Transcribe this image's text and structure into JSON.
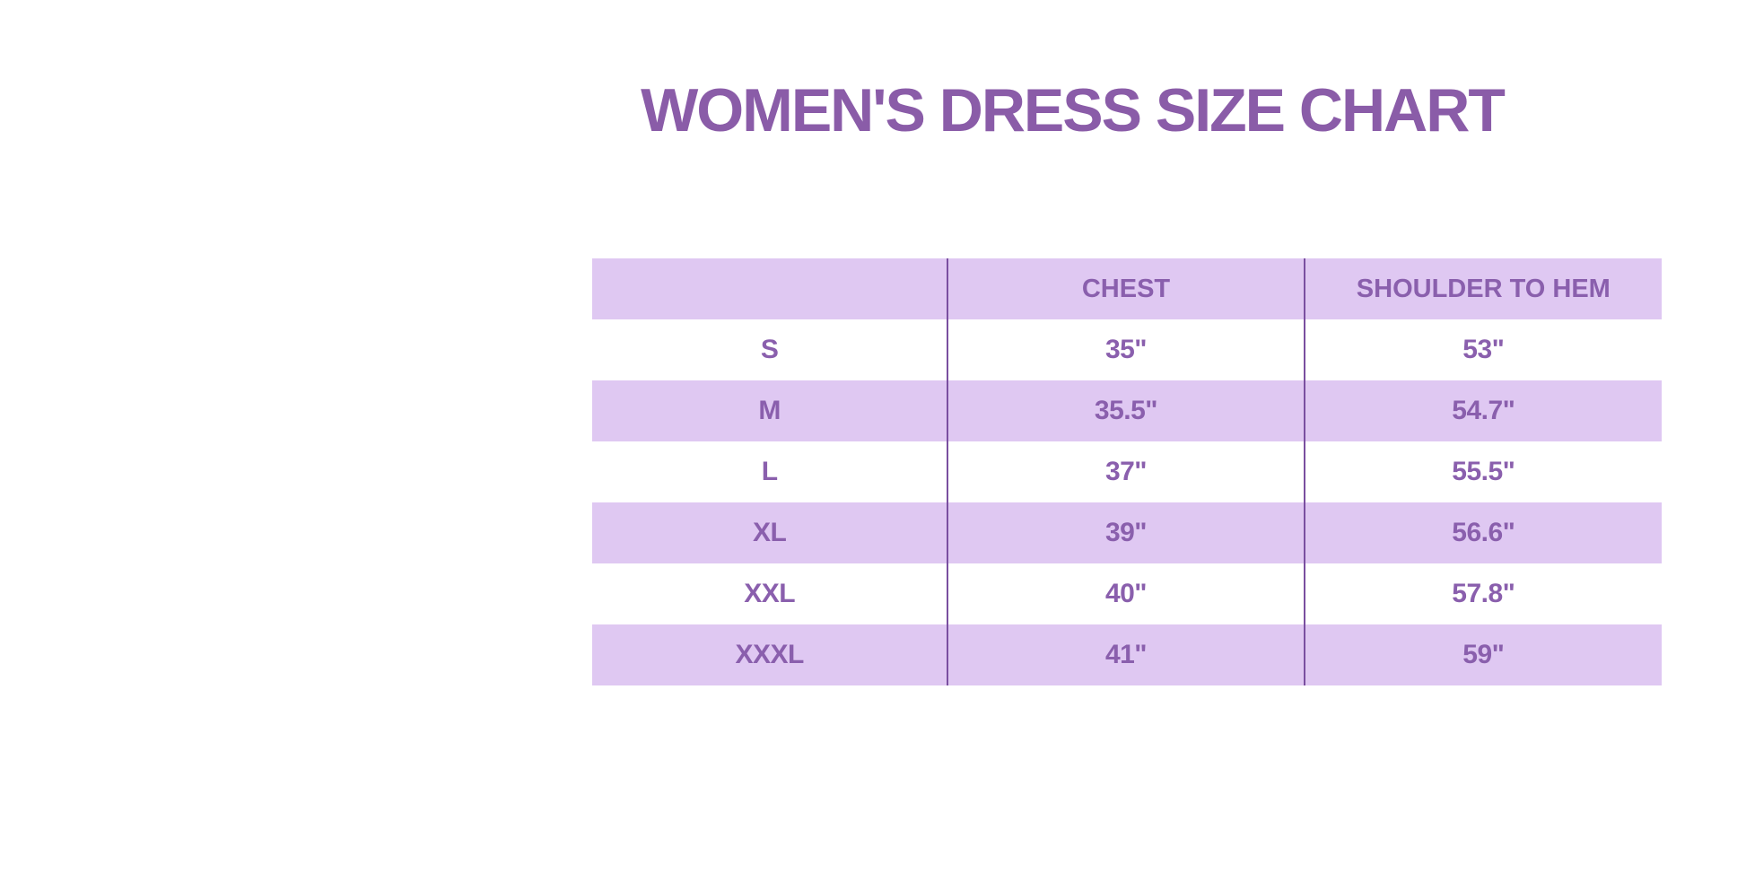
{
  "theme": {
    "background": "#ffffff",
    "accent": "#8a5ca8",
    "band": "#dfc8f2",
    "divider": "#7a4fa0",
    "cell-text": "#8a5fad"
  },
  "title": {
    "text": "WOMEN'S DRESS SIZE CHART"
  },
  "table": {
    "columns": {
      "size": "",
      "chest": "CHEST",
      "shoulder_to_hem": "SHOULDER TO HEM"
    },
    "rows": [
      {
        "size": "S",
        "chest": "35\"",
        "shoulder_to_hem": "53\""
      },
      {
        "size": "M",
        "chest": "35.5\"",
        "shoulder_to_hem": "54.7\""
      },
      {
        "size": "L",
        "chest": "37\"",
        "shoulder_to_hem": "55.5\""
      },
      {
        "size": "XL",
        "chest": "39\"",
        "shoulder_to_hem": "56.6\""
      },
      {
        "size": "XXL",
        "chest": "40\"",
        "shoulder_to_hem": "57.8\""
      },
      {
        "size": "XXXL",
        "chest": "41\"",
        "shoulder_to_hem": "59\""
      }
    ]
  }
}
